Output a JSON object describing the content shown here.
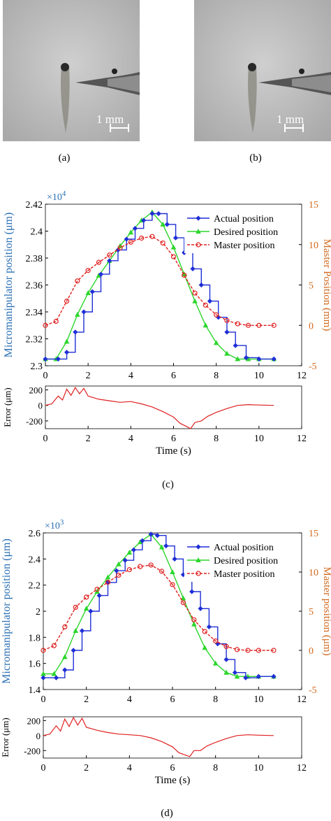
{
  "photos": {
    "a": {
      "label": "(a)",
      "scalebar": "1 mm"
    },
    "b": {
      "label": "(b)",
      "scalebar": "1 mm"
    }
  },
  "colors": {
    "actual": "#1f2fd6",
    "desired": "#2bd62b",
    "master": "#e02020",
    "error": "#e02020",
    "left_axis": "#2a6fb5",
    "right_axis": "#d2691e"
  },
  "chart_data": [
    {
      "panel": "(c)",
      "type": "line",
      "main": {
        "ylabel": "Micromanipulator position (μm)",
        "ylabel_right": "Master Position (mm)",
        "exponent": "×10",
        "exponent_power": "4",
        "ylim": [
          2.3,
          2.42
        ],
        "yticks": [
          "2.3",
          "2.32",
          "2.34",
          "2.36",
          "2.38",
          "2.4",
          "2.42"
        ],
        "ylim_right": [
          -5,
          15
        ],
        "yticks_right": [
          "-5",
          "0",
          "5",
          "10",
          "15"
        ],
        "xlim": [
          0,
          12
        ],
        "xticks": [
          "0",
          "2",
          "4",
          "6",
          "8",
          "10",
          "12"
        ],
        "legend": [
          "Actual position",
          "Desired position",
          "Master position"
        ],
        "legend_position": "top-right",
        "series": {
          "actual": {
            "style": "staircase",
            "x": [
              0,
              0.6,
              1.0,
              1.4,
              1.8,
              2.2,
              2.6,
              3.0,
              3.4,
              3.8,
              4.2,
              4.6,
              5.0,
              5.3,
              5.7,
              6.1,
              6.5,
              6.9,
              7.3,
              7.7,
              8.1,
              8.5,
              8.9,
              9.4,
              10.0,
              10.7
            ],
            "y": [
              2.305,
              2.305,
              2.31,
              2.325,
              2.34,
              2.355,
              2.368,
              2.378,
              2.386,
              2.394,
              2.402,
              2.408,
              2.413,
              2.413,
              2.405,
              2.395,
              2.384,
              2.372,
              2.36,
              2.348,
              2.336,
              2.325,
              2.315,
              2.306,
              2.305,
              2.305
            ]
          },
          "desired": {
            "style": "smooth",
            "x": [
              0,
              0.5,
              1.0,
              1.5,
              2.0,
              2.5,
              3.0,
              3.5,
              4.0,
              4.5,
              5.0,
              5.5,
              6.0,
              6.5,
              7.0,
              7.5,
              8.0,
              8.5,
              9.0,
              9.5,
              10.0,
              10.7
            ],
            "y": [
              2.305,
              2.305,
              2.318,
              2.338,
              2.354,
              2.367,
              2.378,
              2.389,
              2.399,
              2.408,
              2.414,
              2.405,
              2.388,
              2.368,
              2.348,
              2.33,
              2.317,
              2.309,
              2.305,
              2.305,
              2.305,
              2.305
            ]
          },
          "master": {
            "style": "smooth",
            "axis": "right",
            "x": [
              0,
              0.5,
              1.0,
              1.5,
              2.0,
              2.5,
              3.0,
              3.5,
              4.0,
              4.5,
              5.0,
              5.5,
              6.0,
              6.5,
              7.0,
              7.5,
              8.0,
              8.5,
              9.0,
              9.5,
              10.0,
              10.7
            ],
            "y": [
              0.0,
              0.5,
              3.0,
              5.5,
              6.8,
              7.8,
              8.7,
              9.6,
              10.3,
              10.8,
              11.0,
              10.2,
              8.5,
              6.2,
              4.0,
              2.5,
              1.3,
              0.6,
              0.2,
              0.0,
              0.0,
              0.0
            ]
          }
        }
      },
      "error": {
        "ylabel": "Error (μm)",
        "ylim": [
          -300,
          250
        ],
        "yticks": [
          "-200",
          "0",
          "200"
        ],
        "xlim": [
          0,
          12
        ],
        "xticks": [
          "0",
          "2",
          "4",
          "6",
          "8",
          "10",
          "12"
        ],
        "xlabel": "Time (s)",
        "series": {
          "x": [
            0,
            0.3,
            0.6,
            0.8,
            1.0,
            1.2,
            1.4,
            1.6,
            1.8,
            2.0,
            2.5,
            3.0,
            3.5,
            4.0,
            4.5,
            5.0,
            5.5,
            6.0,
            6.3,
            6.6,
            6.8,
            7.0,
            7.3,
            7.6,
            8.0,
            8.5,
            9.0,
            9.5,
            10.0,
            10.7
          ],
          "y": [
            0,
            20,
            120,
            70,
            210,
            130,
            230,
            150,
            220,
            120,
            80,
            60,
            40,
            50,
            20,
            -20,
            -80,
            -150,
            -230,
            -270,
            -300,
            -220,
            -200,
            -140,
            -90,
            -40,
            0,
            10,
            5,
            0
          ]
        }
      }
    },
    {
      "panel": "(d)",
      "type": "line",
      "main": {
        "ylabel": "Micromanipulator position (μm)",
        "ylabel_right": "Master position (μm)",
        "exponent": "×10",
        "exponent_power": "3",
        "ylim": [
          1.4,
          2.6
        ],
        "yticks": [
          "1.4",
          "1.6",
          "1.8",
          "2",
          "2.2",
          "2.4",
          "2.6"
        ],
        "ylim_right": [
          -5,
          15
        ],
        "yticks_right": [
          "-5",
          "0",
          "5",
          "10",
          "15"
        ],
        "xlim": [
          0,
          12
        ],
        "xticks": [
          "0",
          "2",
          "4",
          "6",
          "8",
          "10",
          "12"
        ],
        "legend": [
          "Actual position",
          "Desired position",
          "Master position"
        ],
        "legend_position": "top-right",
        "series": {
          "actual": {
            "style": "staircase",
            "x": [
              0,
              0.6,
              1.0,
              1.4,
              1.8,
              2.2,
              2.6,
              3.0,
              3.4,
              3.8,
              4.2,
              4.6,
              5.0,
              5.3,
              5.7,
              6.1,
              6.5,
              6.9,
              7.3,
              7.7,
              8.1,
              8.5,
              8.9,
              9.4,
              10.0,
              10.7
            ],
            "y": [
              1.49,
              1.49,
              1.55,
              1.7,
              1.85,
              2.0,
              2.12,
              2.22,
              2.31,
              2.39,
              2.47,
              2.54,
              2.59,
              2.58,
              2.5,
              2.4,
              2.28,
              2.15,
              2.02,
              1.88,
              1.75,
              1.63,
              1.53,
              1.49,
              1.5,
              1.5
            ]
          },
          "desired": {
            "style": "smooth",
            "x": [
              0,
              0.5,
              1.0,
              1.5,
              2.0,
              2.5,
              3.0,
              3.5,
              4.0,
              4.5,
              5.0,
              5.5,
              6.0,
              6.5,
              7.0,
              7.5,
              8.0,
              8.5,
              9.0,
              9.5,
              10.0,
              10.7
            ],
            "y": [
              1.52,
              1.52,
              1.65,
              1.85,
              2.02,
              2.15,
              2.26,
              2.36,
              2.45,
              2.53,
              2.59,
              2.49,
              2.3,
              2.1,
              1.9,
              1.72,
              1.6,
              1.53,
              1.5,
              1.5,
              1.5,
              1.5
            ]
          },
          "master": {
            "style": "smooth",
            "axis": "right",
            "x": [
              0,
              0.5,
              1.0,
              1.5,
              2.0,
              2.5,
              3.0,
              3.5,
              4.0,
              4.5,
              5.0,
              5.5,
              6.0,
              6.5,
              7.0,
              7.5,
              8.0,
              8.5,
              9.0,
              9.5,
              10.0,
              10.7
            ],
            "y": [
              0.0,
              0.6,
              3.0,
              5.5,
              6.8,
              7.8,
              8.7,
              9.6,
              10.3,
              10.7,
              10.9,
              10.1,
              8.4,
              6.1,
              3.9,
              2.4,
              1.2,
              0.5,
              0.1,
              0.0,
              0.0,
              0.0
            ]
          }
        }
      },
      "error": {
        "ylabel": "Error (μm)",
        "ylim": [
          -300,
          250
        ],
        "yticks": [
          "-200",
          "0",
          "200"
        ],
        "xlim": [
          0,
          12
        ],
        "xticks": [
          "0",
          "2",
          "4",
          "6",
          "8",
          "10",
          "12"
        ],
        "xlabel": "Time (s)",
        "series": {
          "x": [
            0,
            0.3,
            0.6,
            0.8,
            1.0,
            1.2,
            1.4,
            1.6,
            1.8,
            2.0,
            2.5,
            3.0,
            3.5,
            4.0,
            4.5,
            5.0,
            5.5,
            6.0,
            6.3,
            6.6,
            6.8,
            7.0,
            7.3,
            7.6,
            8.0,
            8.5,
            9.0,
            9.5,
            10.0,
            10.7
          ],
          "y": [
            0,
            20,
            130,
            60,
            220,
            120,
            240,
            140,
            230,
            110,
            70,
            40,
            20,
            10,
            0,
            -30,
            -80,
            -150,
            -230,
            -260,
            -280,
            -200,
            -200,
            -140,
            -90,
            -40,
            0,
            10,
            5,
            0
          ]
        }
      }
    }
  ]
}
